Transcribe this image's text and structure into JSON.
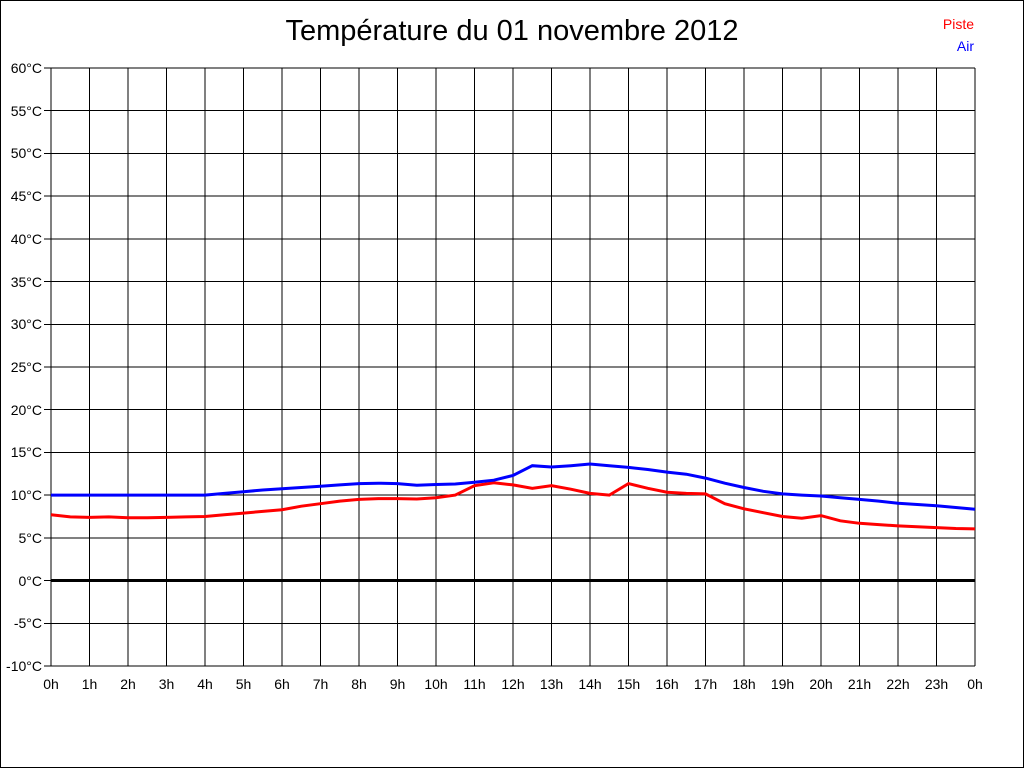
{
  "page": {
    "title": "Température du 01 novembre 2012"
  },
  "legend": {
    "position": "top-right",
    "items": [
      {
        "label": "Piste",
        "color": "#ff0000"
      },
      {
        "label": "Air",
        "color": "#0000ff"
      }
    ]
  },
  "chart_data": {
    "type": "line",
    "title": "Température du 01 novembre 2012",
    "xlabel": "",
    "ylabel": "",
    "x_unit": "h",
    "y_unit": "°C",
    "xlim": [
      0,
      24
    ],
    "ylim": [
      -10,
      60
    ],
    "grid": true,
    "zero_line_emphasized": true,
    "legend_position": "top-right",
    "axis_color": "#000000",
    "x_tick_labels": [
      "0h",
      "1h",
      "2h",
      "3h",
      "4h",
      "5h",
      "6h",
      "7h",
      "8h",
      "9h",
      "10h",
      "11h",
      "12h",
      "13h",
      "14h",
      "15h",
      "16h",
      "17h",
      "18h",
      "19h",
      "20h",
      "21h",
      "22h",
      "23h",
      "0h"
    ],
    "y_tick_labels": [
      "60°C",
      "55°C",
      "50°C",
      "45°C",
      "40°C",
      "35°C",
      "30°C",
      "25°C",
      "20°C",
      "15°C",
      "10°C",
      "5°C",
      "0°C",
      "-5°C",
      "-10°C"
    ],
    "y_tick_values": [
      60,
      55,
      50,
      45,
      40,
      35,
      30,
      25,
      20,
      15,
      10,
      5,
      0,
      -5,
      -10
    ],
    "x_start": 0,
    "x_step_hours": 0.5,
    "series": [
      {
        "name": "Piste",
        "color": "#ff0000",
        "values": [
          7.7,
          7.45,
          7.4,
          7.45,
          7.35,
          7.35,
          7.4,
          7.45,
          7.5,
          7.7,
          7.9,
          8.1,
          8.3,
          8.7,
          9.0,
          9.3,
          9.5,
          9.6,
          9.6,
          9.55,
          9.7,
          10.0,
          11.1,
          11.45,
          11.2,
          10.8,
          11.1,
          10.7,
          10.2,
          10.0,
          11.35,
          10.8,
          10.35,
          10.2,
          10.15,
          9.0,
          8.4,
          7.95,
          7.5,
          7.3,
          7.6,
          7.0,
          6.7,
          6.55,
          6.4,
          6.3,
          6.2,
          6.1,
          6.05
        ]
      },
      {
        "name": "Air",
        "color": "#0000ff",
        "values": [
          10.0,
          10.0,
          10.0,
          10.0,
          10.0,
          10.0,
          10.0,
          10.0,
          10.0,
          10.2,
          10.4,
          10.6,
          10.75,
          10.9,
          11.05,
          11.2,
          11.35,
          11.4,
          11.35,
          11.15,
          11.25,
          11.3,
          11.5,
          11.75,
          12.3,
          13.45,
          13.3,
          13.45,
          13.65,
          13.45,
          13.25,
          13.0,
          12.7,
          12.45,
          12.0,
          11.4,
          10.9,
          10.45,
          10.15,
          10.0,
          9.9,
          9.7,
          9.5,
          9.3,
          9.05,
          8.9,
          8.75,
          8.55,
          8.35
        ]
      }
    ]
  }
}
